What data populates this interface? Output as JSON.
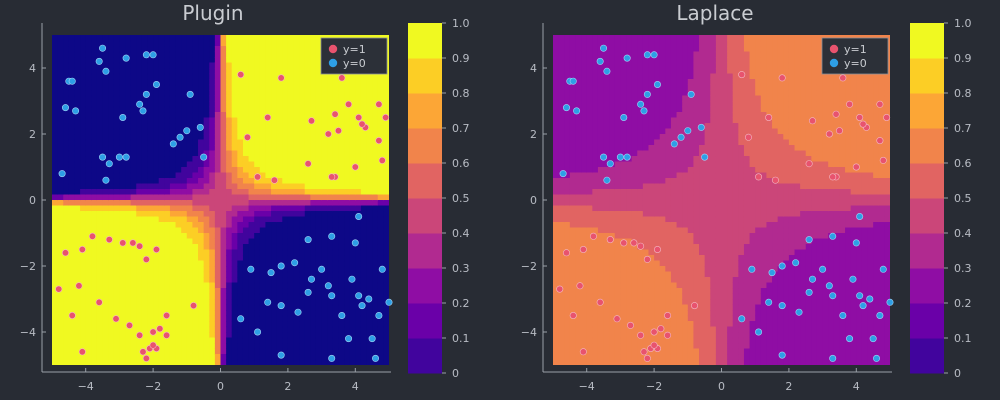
{
  "chart_data": [
    {
      "type": "contour",
      "title": "Plugin",
      "xlabel": "",
      "ylabel": "",
      "xlim": [
        -5,
        5
      ],
      "ylim": [
        -5,
        5
      ],
      "xticks": [
        -4,
        -2,
        0,
        2,
        4
      ],
      "yticks": [
        -4,
        -2,
        0,
        2,
        4
      ],
      "colormap": "plasma",
      "colorbar_ticks": [
        0,
        0.1,
        0.2,
        0.3,
        0.4,
        0.5,
        0.6,
        0.7,
        0.8,
        0.9,
        1.0
      ],
      "legend": {
        "placement": "top-right",
        "entries": [
          {
            "name": "y=1",
            "color": "#e8536e"
          },
          {
            "name": "y=0",
            "color": "#2e9fe6"
          }
        ]
      },
      "grid": false
    },
    {
      "type": "contour",
      "title": "Laplace",
      "xlabel": "",
      "ylabel": "",
      "xlim": [
        -5,
        5
      ],
      "ylim": [
        -5,
        5
      ],
      "xticks": [
        -4,
        -2,
        0,
        2,
        4
      ],
      "yticks": [
        -4,
        -2,
        0,
        2,
        4
      ],
      "colormap": "plasma",
      "colorbar_ticks": [
        0,
        0.1,
        0.2,
        0.3,
        0.4,
        0.5,
        0.6,
        0.7,
        0.8,
        0.9,
        1.0
      ],
      "legend": {
        "placement": "top-right",
        "entries": [
          {
            "name": "y=1",
            "color": "#e8536e"
          },
          {
            "name": "y=0",
            "color": "#2e9fe6"
          }
        ]
      },
      "grid": false
    }
  ],
  "scatter": {
    "y1": [
      [
        0.6,
        3.8
      ],
      [
        1.8,
        3.7
      ],
      [
        3.6,
        3.7
      ],
      [
        4.3,
        4.7
      ],
      [
        0.8,
        1.9
      ],
      [
        1.4,
        2.5
      ],
      [
        2.7,
        2.4
      ],
      [
        3.4,
        2.6
      ],
      [
        3.8,
        2.9
      ],
      [
        4.1,
        2.5
      ],
      [
        4.3,
        2.2
      ],
      [
        4.7,
        2.9
      ],
      [
        4.9,
        2.5
      ],
      [
        3.2,
        2.0
      ],
      [
        3.5,
        2.1
      ],
      [
        4.7,
        1.8
      ],
      [
        2.6,
        1.1
      ],
      [
        3.4,
        0.7
      ],
      [
        4.0,
        1.0
      ],
      [
        4.8,
        1.2
      ],
      [
        1.1,
        0.7
      ],
      [
        1.6,
        0.6
      ],
      [
        3.3,
        0.7
      ],
      [
        4.2,
        2.3
      ],
      [
        -4.8,
        -2.7
      ],
      [
        -4.6,
        -1.6
      ],
      [
        -4.1,
        -1.5
      ],
      [
        -3.8,
        -1.1
      ],
      [
        -3.3,
        -1.2
      ],
      [
        -2.9,
        -1.3
      ],
      [
        -2.6,
        -1.3
      ],
      [
        -2.4,
        -1.4
      ],
      [
        -1.9,
        -1.5
      ],
      [
        -2.2,
        -1.8
      ],
      [
        -4.2,
        -2.6
      ],
      [
        -3.6,
        -3.1
      ],
      [
        -4.4,
        -3.5
      ],
      [
        -3.1,
        -3.6
      ],
      [
        -2.7,
        -3.8
      ],
      [
        -1.6,
        -3.5
      ],
      [
        -0.8,
        -3.2
      ],
      [
        -1.8,
        -3.9
      ],
      [
        -2.0,
        -4.0
      ],
      [
        -1.6,
        -4.1
      ],
      [
        -2.4,
        -4.1
      ],
      [
        -2.1,
        -4.5
      ],
      [
        -2.3,
        -4.6
      ],
      [
        -2.2,
        -4.8
      ],
      [
        -1.9,
        -4.5
      ],
      [
        -4.1,
        -4.6
      ],
      [
        -2.0,
        -4.4
      ]
    ],
    "y0": [
      [
        -3.5,
        4.6
      ],
      [
        -4.5,
        3.6
      ],
      [
        -4.4,
        3.6
      ],
      [
        -3.6,
        4.2
      ],
      [
        -2.8,
        4.3
      ],
      [
        -2.2,
        4.4
      ],
      [
        -2.0,
        4.4
      ],
      [
        -3.4,
        3.9
      ],
      [
        -1.9,
        3.5
      ],
      [
        -2.4,
        2.9
      ],
      [
        -0.9,
        3.2
      ],
      [
        -2.2,
        3.2
      ],
      [
        -4.6,
        2.8
      ],
      [
        -4.3,
        2.7
      ],
      [
        -2.3,
        2.7
      ],
      [
        -2.9,
        2.5
      ],
      [
        -1.0,
        2.1
      ],
      [
        -0.6,
        2.2
      ],
      [
        -1.2,
        1.9
      ],
      [
        -1.4,
        1.7
      ],
      [
        -3.5,
        1.3
      ],
      [
        -3.3,
        1.1
      ],
      [
        -3.0,
        1.3
      ],
      [
        -2.8,
        1.3
      ],
      [
        -0.5,
        1.3
      ],
      [
        -3.4,
        0.6
      ],
      [
        -4.7,
        0.8
      ],
      [
        4.1,
        -0.5
      ],
      [
        0.6,
        -3.6
      ],
      [
        1.1,
        -4.0
      ],
      [
        1.8,
        -3.2
      ],
      [
        1.4,
        -3.1
      ],
      [
        1.5,
        -2.2
      ],
      [
        1.8,
        -2.0
      ],
      [
        0.9,
        -2.1
      ],
      [
        2.6,
        -1.2
      ],
      [
        3.3,
        -1.1
      ],
      [
        4.0,
        -1.3
      ],
      [
        2.2,
        -1.9
      ],
      [
        2.7,
        -2.4
      ],
      [
        3.0,
        -2.1
      ],
      [
        3.2,
        -2.6
      ],
      [
        3.9,
        -2.4
      ],
      [
        4.8,
        -2.1
      ],
      [
        2.6,
        -2.8
      ],
      [
        3.3,
        -2.9
      ],
      [
        4.1,
        -2.9
      ],
      [
        4.4,
        -3.0
      ],
      [
        2.3,
        -3.4
      ],
      [
        3.6,
        -3.5
      ],
      [
        4.2,
        -3.2
      ],
      [
        3.8,
        -4.2
      ],
      [
        1.8,
        -4.7
      ],
      [
        3.3,
        -4.8
      ],
      [
        4.6,
        -4.8
      ],
      [
        4.7,
        -3.5
      ],
      [
        5.0,
        -3.1
      ],
      [
        4.5,
        -4.2
      ]
    ]
  }
}
